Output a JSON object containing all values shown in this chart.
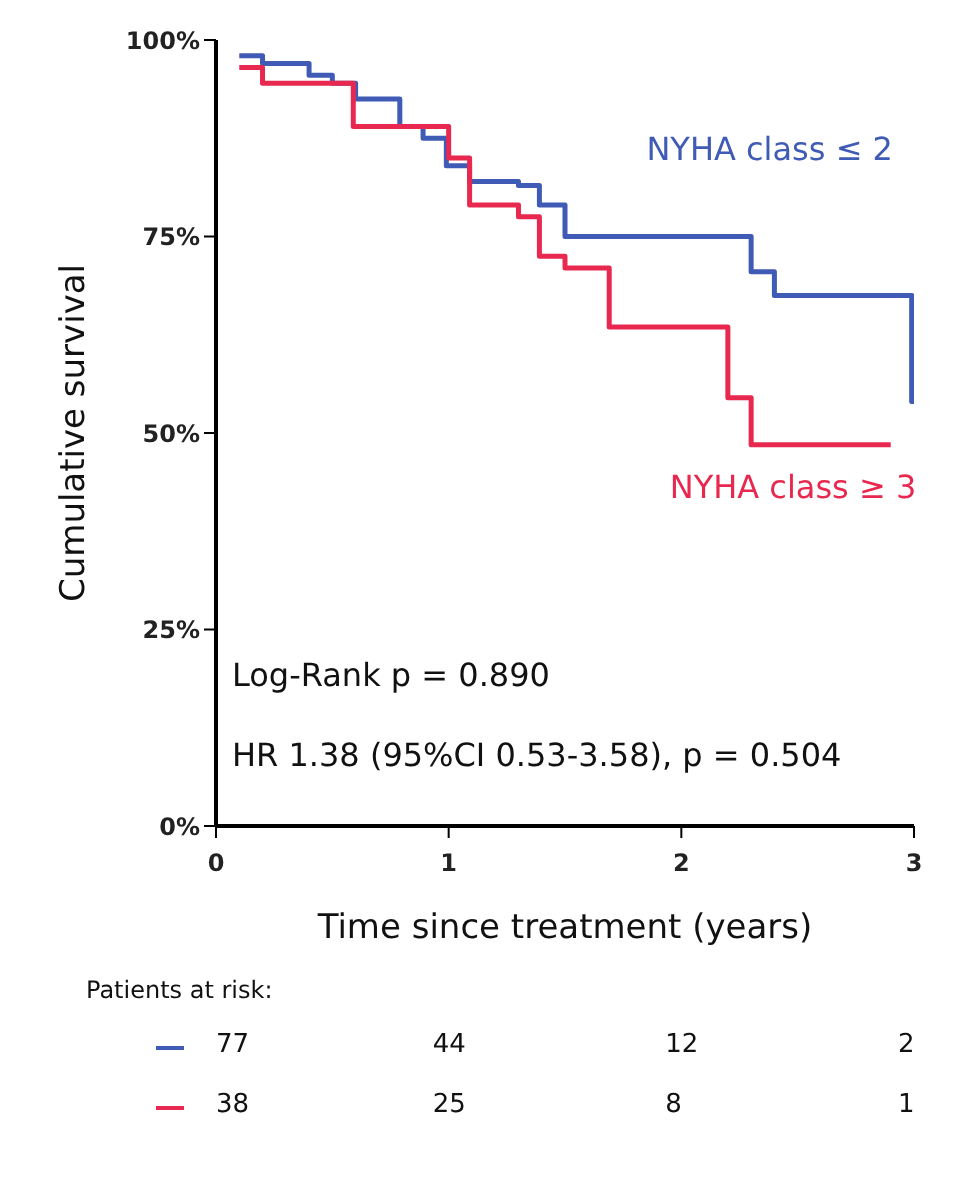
{
  "chart_data": {
    "type": "step",
    "xlabel": "Time since treatment (years)",
    "ylabel": "Cumulative survival",
    "xlim": [
      0,
      3
    ],
    "xticks": [
      0,
      1,
      2,
      3
    ],
    "ylim": [
      0,
      100
    ],
    "yticks": [
      {
        "value": 0,
        "label": "0%"
      },
      {
        "value": 25,
        "label": "25%"
      },
      {
        "value": 50,
        "label": "50%"
      },
      {
        "value": 75,
        "label": "75%"
      },
      {
        "value": 100,
        "label": "100%"
      }
    ],
    "grid": false,
    "legend": false,
    "series": [
      {
        "name": "NYHA class ≤ 2",
        "color": "#3f5bb5",
        "x": [
          0.1,
          0.2,
          0.4,
          0.5,
          0.6,
          0.79,
          0.89,
          0.99,
          1.09,
          1.3,
          1.39,
          1.5,
          2.3,
          2.4,
          2.99,
          3
        ],
        "values": [
          98,
          97,
          95.5,
          94.5,
          92.5,
          89,
          87.5,
          84,
          82,
          81.5,
          79,
          75,
          70.5,
          67.5,
          54,
          54
        ]
      },
      {
        "name": "NYHA class ≥ 3",
        "color": "#e8284f",
        "x": [
          0.1,
          0.2,
          0.59,
          1.0,
          1.09,
          1.3,
          1.39,
          1.5,
          1.69,
          2.2,
          2.3,
          2.9
        ],
        "values": [
          96.5,
          94.5,
          89,
          85,
          79,
          77.5,
          72.5,
          71,
          63.5,
          54.5,
          48.5,
          48.5
        ]
      }
    ],
    "annotations": [
      "Log-Rank p = 0.890",
      "HR 1.38 (95%CI 0.53-3.58), p = 0.504",
      "Patients at risk:",
      "77",
      "44",
      "12",
      "2",
      "38",
      "25",
      "8",
      "1"
    ]
  }
}
